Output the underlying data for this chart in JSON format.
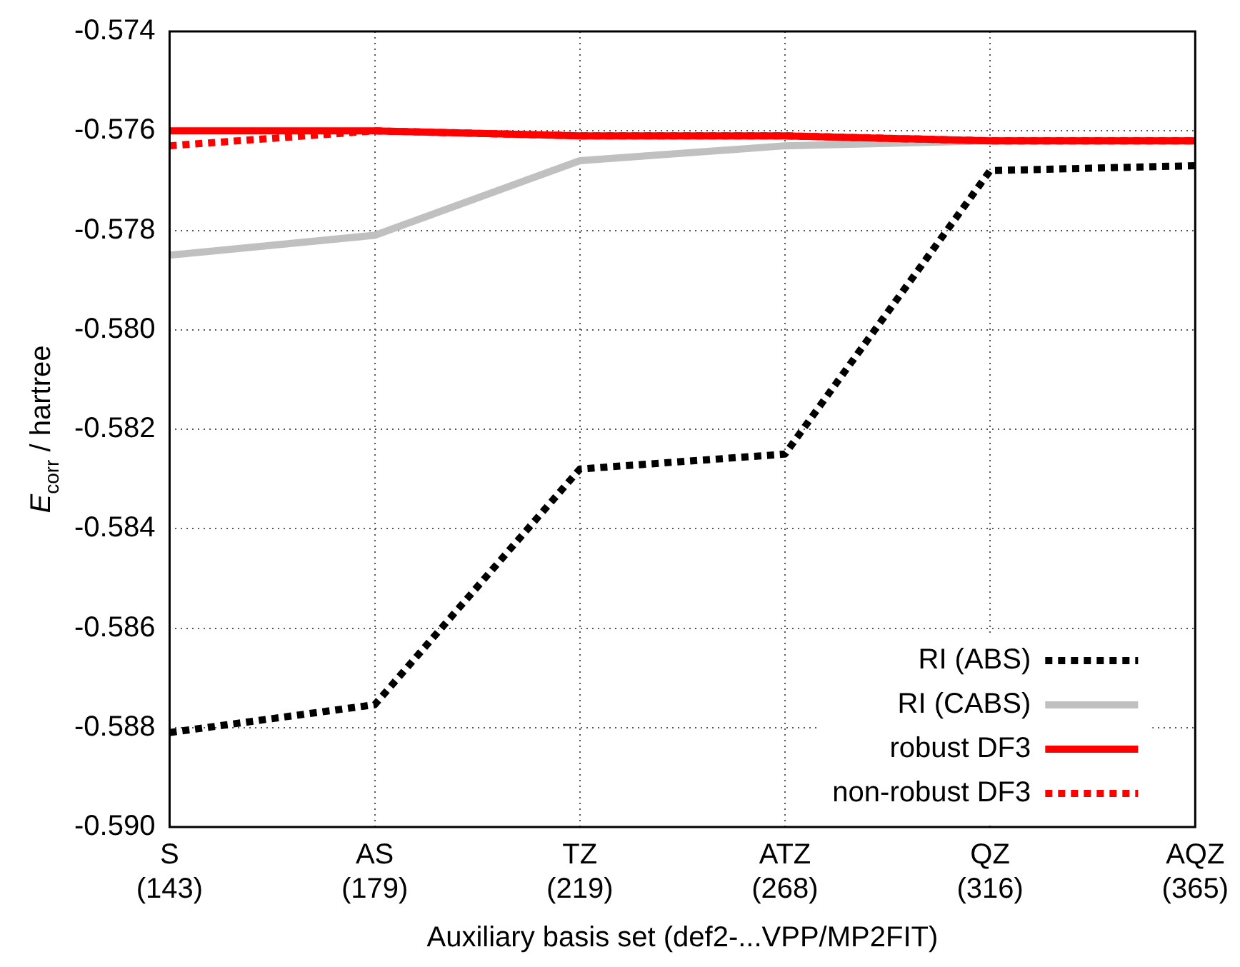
{
  "chart_data": {
    "type": "line",
    "xlabel": "Auxiliary basis set (def2-...VPP/MP2FIT)",
    "ylabel": "E$_{corr}$ / hartree",
    "categories": [
      "S\n(143)",
      "AS\n(179)",
      "TZ\n(219)",
      "ATZ\n(268)",
      "QZ\n(316)",
      "AQZ\n(365)"
    ],
    "ylim": [
      -0.59,
      -0.574
    ],
    "yticks": [
      {
        "value": -0.59,
        "label": "-0.590"
      },
      {
        "value": -0.588,
        "label": "-0.588"
      },
      {
        "value": -0.586,
        "label": "-0.586"
      },
      {
        "value": -0.584,
        "label": "-0.584"
      },
      {
        "value": -0.582,
        "label": "-0.582"
      },
      {
        "value": -0.58,
        "label": "-0.580"
      },
      {
        "value": -0.578,
        "label": "-0.578"
      },
      {
        "value": -0.576,
        "label": "-0.576"
      },
      {
        "value": -0.574,
        "label": "-0.574"
      }
    ],
    "grid": true,
    "legend": "bottom right",
    "marker": "none",
    "series": [
      {
        "name": "RI (ABS)",
        "color": "#000000",
        "line_style": "dotted",
        "values": [
          -0.5881,
          -0.58754,
          -0.5828,
          -0.5825,
          -0.5768,
          -0.5767
        ]
      },
      {
        "name": "RI (CABS)",
        "color": "#c0c0c0",
        "line_style": "solid",
        "values": [
          -0.5785,
          -0.5781,
          -0.5766,
          -0.5763,
          -0.5762,
          -0.5762
        ]
      },
      {
        "name": "robust DF3",
        "color": "#ff0000",
        "line_style": "solid",
        "values": [
          -0.576,
          -0.576,
          -0.5761,
          -0.5761,
          -0.5762,
          -0.5762
        ]
      },
      {
        "name": "non-robust DF3",
        "color": "#ff0000",
        "line_style": "dotted",
        "values": [
          -0.5763,
          -0.576,
          -0.5761,
          -0.5761,
          -0.5762,
          -0.5762
        ]
      }
    ]
  }
}
